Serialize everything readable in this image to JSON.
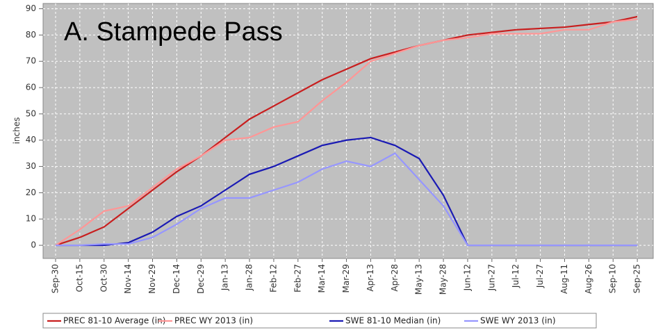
{
  "chart_data": {
    "type": "line",
    "title": "A. Stampede Pass",
    "y_label": "inches",
    "categories": [
      "Sep-30",
      "Oct-15",
      "Oct-30",
      "Nov-14",
      "Nov-29",
      "Dec-14",
      "Dec-29",
      "Jan-13",
      "Jan-28",
      "Feb-12",
      "Feb-27",
      "Mar-14",
      "Mar-29",
      "Apr-13",
      "Apr-28",
      "May-13",
      "May-28",
      "Jun-12",
      "Jun-27",
      "Jul-12",
      "Jul-27",
      "Aug-11",
      "Aug-26",
      "Sep-10",
      "Sep-25"
    ],
    "series": [
      {
        "name": "PREC 81-10 Average (in)",
        "color": "#c81e1e",
        "values": [
          0,
          3,
          7,
          14,
          21,
          28,
          34,
          41,
          48,
          53,
          58,
          63,
          67,
          71,
          73.5,
          76,
          78,
          80,
          81,
          82,
          82.5,
          83,
          84,
          85,
          87
        ]
      },
      {
        "name": "PREC WY 2013  (in)",
        "color": "#ff9696",
        "values": [
          0,
          6,
          13,
          15,
          22,
          29,
          34,
          40,
          41,
          45,
          47,
          55,
          62,
          70,
          73,
          76,
          78,
          79,
          80.5,
          80.5,
          80.5,
          82,
          82,
          85,
          86
        ]
      },
      {
        "name": "SWE 81-10 Median (in)",
        "color": "#1a1ab4",
        "values": [
          0,
          0,
          0,
          1,
          5,
          11,
          15,
          21,
          27,
          30,
          34,
          38,
          40,
          41,
          38,
          33,
          19,
          0,
          0,
          0,
          0,
          0,
          0,
          0,
          0
        ]
      },
      {
        "name": "SWE WY 2013  (in)",
        "color": "#9696ff",
        "values": [
          0,
          0,
          0.5,
          0.5,
          3,
          8,
          14,
          18,
          18,
          21,
          24,
          29,
          32,
          30,
          35,
          25,
          15,
          0,
          0,
          0,
          0,
          0,
          0,
          0,
          0
        ]
      }
    ],
    "ylim": [
      -5,
      92
    ],
    "yticks": [
      0,
      10,
      20,
      30,
      40,
      50,
      60,
      70,
      80,
      90
    ],
    "grid": true
  }
}
